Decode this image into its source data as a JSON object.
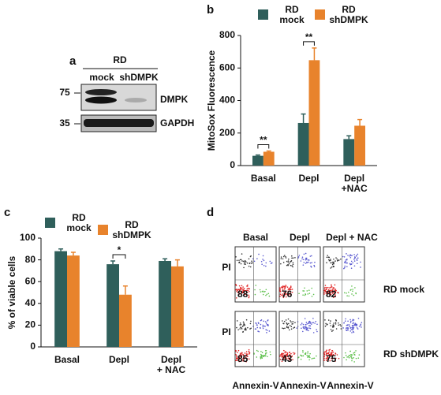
{
  "panel_a": {
    "label": "a",
    "cell_line": "RD",
    "lanes": [
      "mock",
      "shDMPK"
    ],
    "markers": [
      75,
      35
    ],
    "bands": [
      "DMPK",
      "GAPDH"
    ]
  },
  "chart_data": [
    {
      "type": "bar",
      "panel_label": "b",
      "ylabel": "MitoSox Fluorescence",
      "categories": [
        "Basal",
        "Depl",
        "Depl\n+NAC"
      ],
      "series": [
        {
          "name": "RD\nmock",
          "color": "#2f5f5b",
          "values": [
            60,
            262,
            163
          ],
          "errors": [
            5,
            55,
            20
          ]
        },
        {
          "name": "RD\nshDMPK",
          "color": "#e8832c",
          "values": [
            85,
            648,
            245
          ],
          "errors": [
            5,
            75,
            38
          ]
        }
      ],
      "ylim": [
        0,
        800
      ],
      "yticks": [
        0,
        200,
        400,
        600,
        800
      ],
      "annotations": [
        {
          "text": "**",
          "category": "Basal"
        },
        {
          "text": "**",
          "category": "Depl"
        }
      ]
    },
    {
      "type": "bar",
      "panel_label": "c",
      "ylabel": "% of viable cells",
      "categories": [
        "Basal",
        "Depl",
        "Depl\n+ NAC"
      ],
      "series": [
        {
          "name": "RD\nmock",
          "color": "#2f5f5b",
          "values": [
            88,
            76,
            79
          ],
          "errors": [
            2,
            3,
            2
          ]
        },
        {
          "name": "RD\nshDMPK",
          "color": "#e8832c",
          "values": [
            84,
            48,
            74
          ],
          "errors": [
            3,
            8,
            6
          ]
        }
      ],
      "ylim": [
        0,
        100
      ],
      "yticks": [
        0,
        20,
        40,
        60,
        80,
        100
      ],
      "annotations": [
        {
          "text": "*",
          "category": "Depl"
        }
      ]
    }
  ],
  "panel_d": {
    "label": "d",
    "columns": [
      "Basal",
      "Depl",
      "Depl + NAC"
    ],
    "y_label": "PI",
    "x_label": "Annexin-V",
    "rows": [
      {
        "name": "RD mock",
        "values": [
          88,
          76,
          82
        ]
      },
      {
        "name": "RD shDMPK",
        "values": [
          85,
          43,
          75
        ]
      }
    ]
  }
}
